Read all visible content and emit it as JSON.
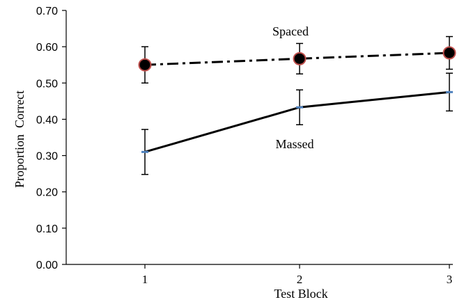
{
  "chart_data": {
    "type": "line",
    "title": "",
    "xlabel": "Test Block",
    "ylabel": "Proportion  Correct",
    "categories": [
      "1",
      "2",
      "3"
    ],
    "ylim": [
      0,
      0.7
    ],
    "yticks": [
      "0.00",
      "0.10",
      "0.20",
      "0.30",
      "0.40",
      "0.50",
      "0.60",
      "0.70"
    ],
    "grid": false,
    "legend": "none",
    "series": [
      {
        "name": "Spaced",
        "values": [
          0.55,
          0.567,
          0.583
        ],
        "error": [
          0.05,
          0.042,
          0.045
        ],
        "line_style": "dash-dot",
        "marker": "circle",
        "marker_fill": "#000000",
        "marker_edge": "#c0504d"
      },
      {
        "name": "Massed",
        "values": [
          0.31,
          0.433,
          0.475
        ],
        "error": [
          0.062,
          0.048,
          0.052
        ],
        "line_style": "solid",
        "marker": "dash",
        "marker_color": "#4f81bd"
      }
    ]
  }
}
